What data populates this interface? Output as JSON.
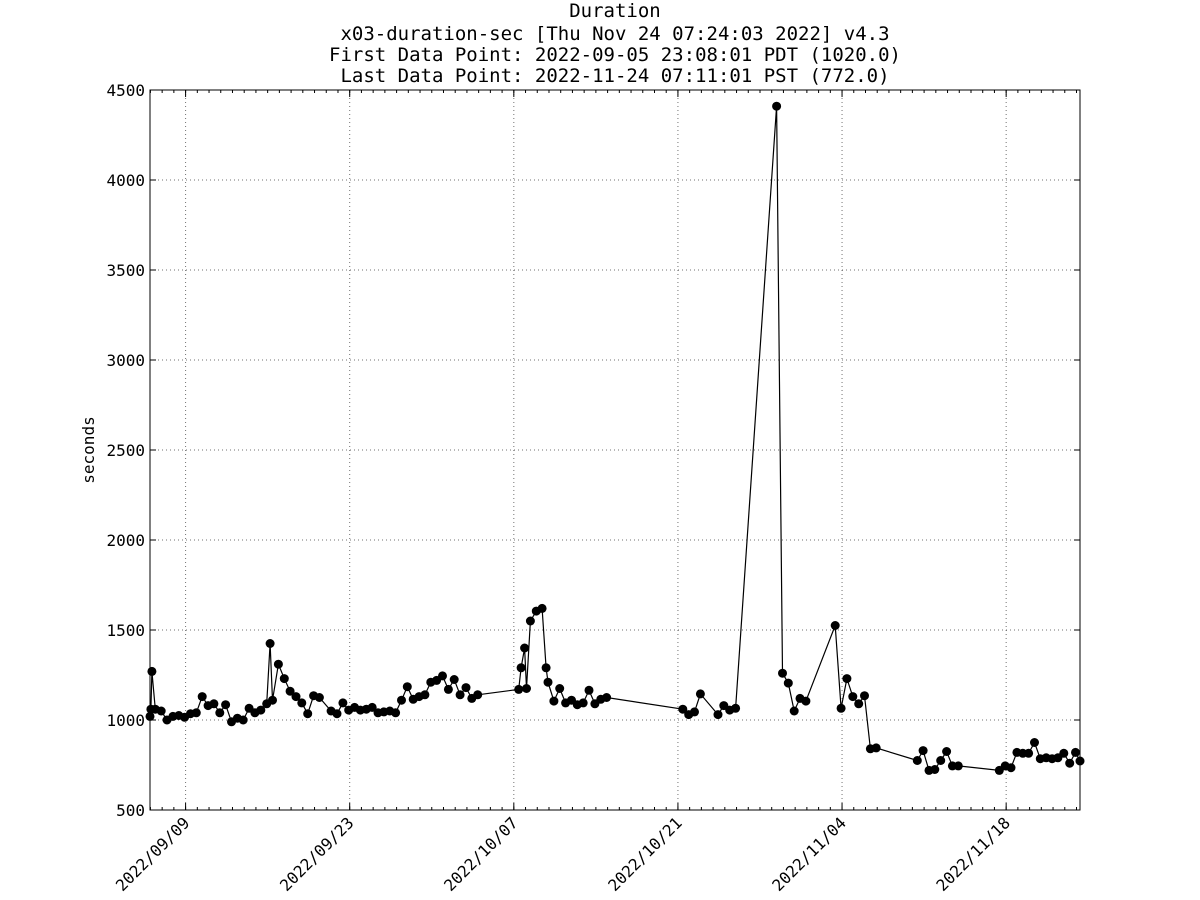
{
  "chart_data": {
    "type": "line",
    "title_lines": [
      "Duration",
      "x03-duration-sec [Thu Nov 24 07:24:03 2022] v4.3",
      "First Data Point: 2022-09-05 23:08:01 PDT (1020.0)",
      "Last Data Point:  2022-11-24 07:11:01 PST (772.0)"
    ],
    "xlabel": "",
    "ylabel": "seconds",
    "xlim": [
      "2022-09-05 23:08",
      "2022-11-24 07:11"
    ],
    "ylim": [
      500,
      4500
    ],
    "grid": true,
    "x_ticks": [
      "2022/09/09",
      "2022/09/23",
      "2022/10/07",
      "2022/10/21",
      "2022/11/04",
      "2022/11/18"
    ],
    "y_ticks": [
      "500",
      "1000",
      "1500",
      "2000",
      "2500",
      "3000",
      "3500",
      "4000",
      "4500"
    ],
    "series": [
      {
        "points": [
          [
            "2022-09-05 23:08",
            1020
          ],
          [
            "2022-09-06 01:00",
            1060
          ],
          [
            "2022-09-06 03:00",
            1270
          ],
          [
            "2022-09-06 10:00",
            1060
          ],
          [
            "2022-09-06 22:00",
            1050
          ],
          [
            "2022-09-07 10:00",
            1000
          ],
          [
            "2022-09-07 22:00",
            1020
          ],
          [
            "2022-09-08 10:00",
            1025
          ],
          [
            "2022-09-08 22:00",
            1015
          ],
          [
            "2022-09-09 10:00",
            1035
          ],
          [
            "2022-09-09 22:00",
            1040
          ],
          [
            "2022-09-10 10:00",
            1130
          ],
          [
            "2022-09-10 22:00",
            1080
          ],
          [
            "2022-09-11 10:00",
            1090
          ],
          [
            "2022-09-11 22:00",
            1040
          ],
          [
            "2022-09-12 10:00",
            1085
          ],
          [
            "2022-09-12 22:00",
            990
          ],
          [
            "2022-09-13 10:00",
            1010
          ],
          [
            "2022-09-13 22:00",
            1000
          ],
          [
            "2022-09-14 10:00",
            1065
          ],
          [
            "2022-09-14 22:00",
            1040
          ],
          [
            "2022-09-15 10:00",
            1055
          ],
          [
            "2022-09-15 22:00",
            1090
          ],
          [
            "2022-09-16 05:00",
            1425
          ],
          [
            "2022-09-16 10:00",
            1110
          ],
          [
            "2022-09-16 22:00",
            1310
          ],
          [
            "2022-09-17 10:00",
            1230
          ],
          [
            "2022-09-17 22:00",
            1160
          ],
          [
            "2022-09-18 10:00",
            1130
          ],
          [
            "2022-09-18 22:00",
            1095
          ],
          [
            "2022-09-19 10:00",
            1035
          ],
          [
            "2022-09-19 22:00",
            1135
          ],
          [
            "2022-09-20 10:00",
            1125
          ],
          [
            "2022-09-21 10:00",
            1050
          ],
          [
            "2022-09-21 22:00",
            1035
          ],
          [
            "2022-09-22 10:00",
            1095
          ],
          [
            "2022-09-22 22:00",
            1055
          ],
          [
            "2022-09-23 10:00",
            1070
          ],
          [
            "2022-09-23 22:00",
            1055
          ],
          [
            "2022-09-24 10:00",
            1060
          ],
          [
            "2022-09-24 22:00",
            1070
          ],
          [
            "2022-09-25 10:00",
            1040
          ],
          [
            "2022-09-25 22:00",
            1045
          ],
          [
            "2022-09-26 10:00",
            1050
          ],
          [
            "2022-09-26 22:00",
            1040
          ],
          [
            "2022-09-27 10:00",
            1110
          ],
          [
            "2022-09-27 22:00",
            1185
          ],
          [
            "2022-09-28 10:00",
            1115
          ],
          [
            "2022-09-28 22:00",
            1130
          ],
          [
            "2022-09-29 10:00",
            1140
          ],
          [
            "2022-09-29 22:00",
            1210
          ],
          [
            "2022-09-30 10:00",
            1220
          ],
          [
            "2022-09-30 22:00",
            1245
          ],
          [
            "2022-10-01 10:00",
            1170
          ],
          [
            "2022-10-01 22:00",
            1225
          ],
          [
            "2022-10-02 10:00",
            1140
          ],
          [
            "2022-10-02 22:00",
            1180
          ],
          [
            "2022-10-03 10:00",
            1120
          ],
          [
            "2022-10-03 22:00",
            1140
          ],
          [
            "2022-10-07 10:00",
            1170
          ],
          [
            "2022-10-07 15:00",
            1290
          ],
          [
            "2022-10-07 22:00",
            1400
          ],
          [
            "2022-10-08 02:00",
            1175
          ],
          [
            "2022-10-08 10:00",
            1550
          ],
          [
            "2022-10-08 22:00",
            1605
          ],
          [
            "2022-10-09 10:00",
            1620
          ],
          [
            "2022-10-09 18:00",
            1290
          ],
          [
            "2022-10-09 22:00",
            1210
          ],
          [
            "2022-10-10 10:00",
            1105
          ],
          [
            "2022-10-10 22:00",
            1175
          ],
          [
            "2022-10-11 10:00",
            1095
          ],
          [
            "2022-10-11 22:00",
            1110
          ],
          [
            "2022-10-12 10:00",
            1085
          ],
          [
            "2022-10-12 22:00",
            1095
          ],
          [
            "2022-10-13 10:00",
            1165
          ],
          [
            "2022-10-13 22:00",
            1090
          ],
          [
            "2022-10-14 10:00",
            1115
          ],
          [
            "2022-10-14 22:00",
            1125
          ],
          [
            "2022-10-21 10:00",
            1060
          ],
          [
            "2022-10-21 22:00",
            1030
          ],
          [
            "2022-10-22 10:00",
            1045
          ],
          [
            "2022-10-22 22:00",
            1145
          ],
          [
            "2022-10-24 10:00",
            1030
          ],
          [
            "2022-10-24 22:00",
            1080
          ],
          [
            "2022-10-25 10:00",
            1055
          ],
          [
            "2022-10-25 22:00",
            1065
          ],
          [
            "2022-10-29 10:00",
            4410
          ],
          [
            "2022-10-29 22:00",
            1260
          ],
          [
            "2022-10-30 10:00",
            1205
          ],
          [
            "2022-10-30 22:00",
            1050
          ],
          [
            "2022-10-31 10:00",
            1120
          ],
          [
            "2022-10-31 22:00",
            1105
          ],
          [
            "2022-11-03 10:00",
            1525
          ],
          [
            "2022-11-03 22:00",
            1065
          ],
          [
            "2022-11-04 10:00",
            1230
          ],
          [
            "2022-11-04 22:00",
            1130
          ],
          [
            "2022-11-05 10:00",
            1090
          ],
          [
            "2022-11-05 22:00",
            1135
          ],
          [
            "2022-11-06 10:00",
            840
          ],
          [
            "2022-11-06 22:00",
            845
          ],
          [
            "2022-11-10 10:00",
            775
          ],
          [
            "2022-11-10 22:00",
            830
          ],
          [
            "2022-11-11 10:00",
            720
          ],
          [
            "2022-11-11 22:00",
            725
          ],
          [
            "2022-11-12 10:00",
            775
          ],
          [
            "2022-11-12 22:00",
            825
          ],
          [
            "2022-11-13 10:00",
            745
          ],
          [
            "2022-11-13 22:00",
            745
          ],
          [
            "2022-11-17 10:00",
            720
          ],
          [
            "2022-11-17 22:00",
            745
          ],
          [
            "2022-11-18 10:00",
            735
          ],
          [
            "2022-11-18 22:00",
            820
          ],
          [
            "2022-11-19 10:00",
            815
          ],
          [
            "2022-11-19 22:00",
            815
          ],
          [
            "2022-11-20 10:00",
            875
          ],
          [
            "2022-11-20 22:00",
            785
          ],
          [
            "2022-11-21 10:00",
            790
          ],
          [
            "2022-11-21 22:00",
            785
          ],
          [
            "2022-11-22 10:00",
            790
          ],
          [
            "2022-11-22 22:00",
            815
          ],
          [
            "2022-11-23 10:00",
            760
          ],
          [
            "2022-11-23 22:00",
            820
          ],
          [
            "2022-11-24 07:11",
            772
          ]
        ]
      }
    ]
  }
}
